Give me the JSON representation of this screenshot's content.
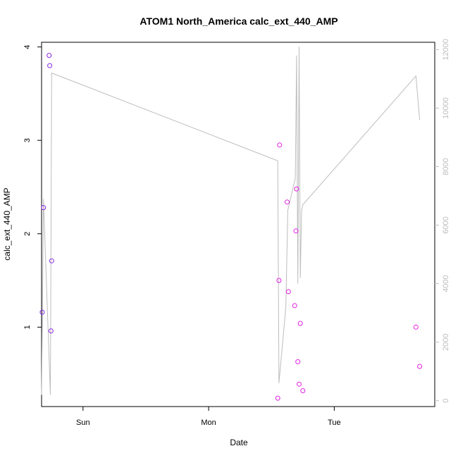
{
  "chart_data": {
    "type": "scatter",
    "title": "ATOM1 North_America calc_ext_440_AMP",
    "xlabel": "Date",
    "ylabel": "calc_ext_440_AMP",
    "x_ticks": [
      "Sun",
      "Mon",
      "Tue"
    ],
    "y_ticks_left": [
      "1",
      "2",
      "3",
      "4"
    ],
    "y_ticks_right": [
      "0",
      "2000",
      "4000",
      "6000",
      "8000",
      "10000",
      "12000"
    ],
    "ylim_left": [
      0.15,
      4.05
    ],
    "ylim_right": [
      -200,
      12250
    ],
    "xlim_days": [
      -0.33,
      2.8
    ],
    "x_reference": "Sun 00:00 = 0 (fractional days)",
    "grid": false,
    "colors": {
      "points_early": "#8a2be2",
      "points_late": "#e020e0",
      "line": "#bdbdbd",
      "axis": "#000000",
      "right_axis": "#bdbdbd"
    },
    "series": [
      {
        "kind": "points",
        "x": [
          -0.325,
          -0.315,
          -0.27,
          -0.265,
          -0.255,
          -0.25,
          1.55,
          1.56,
          1.565,
          1.625,
          1.635,
          1.685,
          1.695,
          1.7,
          1.71,
          1.72,
          1.73,
          1.75,
          2.65,
          2.68
        ],
        "y": [
          1.16,
          2.28,
          3.91,
          3.8,
          0.96,
          1.71,
          0.24,
          1.5,
          2.95,
          2.34,
          1.38,
          1.23,
          2.03,
          2.48,
          0.63,
          0.39,
          1.04,
          0.32,
          1.0,
          0.58
        ]
      },
      {
        "kind": "line",
        "x": [
          -0.33,
          -0.315,
          -0.26,
          -0.25,
          1.55,
          1.56,
          1.615,
          1.63,
          1.69,
          1.7,
          1.71,
          1.72,
          1.73,
          1.74,
          1.75,
          2.65,
          2.68
        ],
        "y": [
          200,
          6900,
          200,
          11200,
          8200,
          600,
          3200,
          6500,
          7600,
          11800,
          4000,
          12100,
          4200,
          6500,
          6700,
          11100,
          9600
        ]
      }
    ]
  }
}
